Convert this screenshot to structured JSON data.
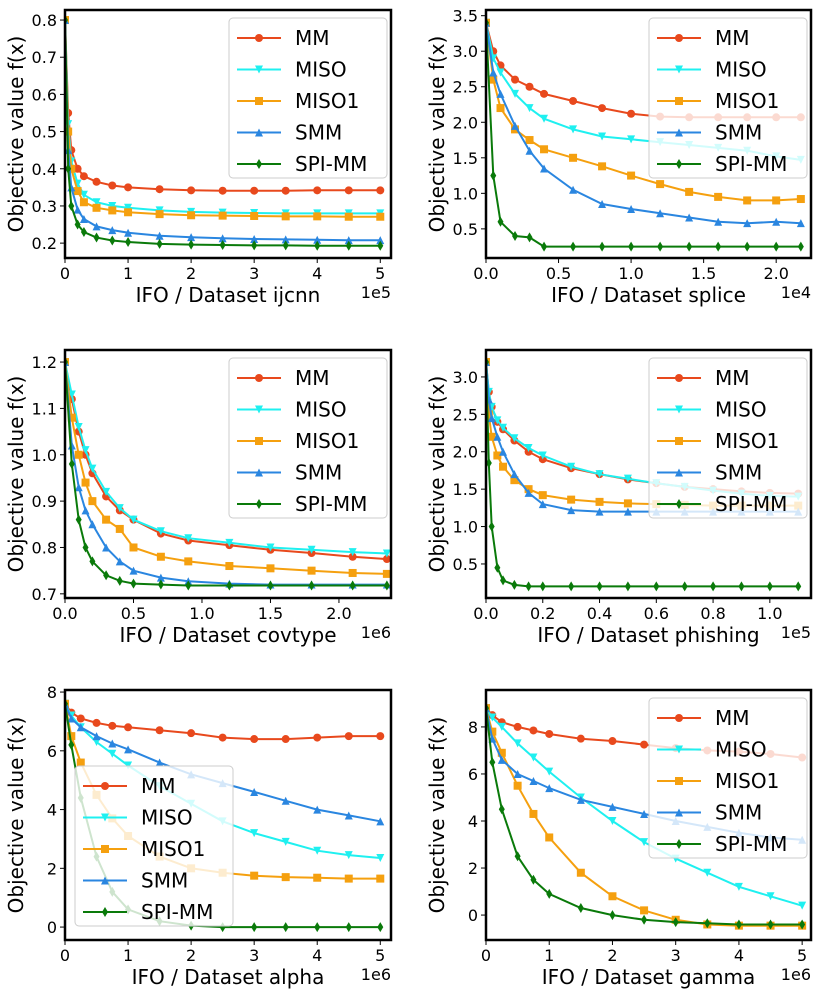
{
  "chart_data": [
    {
      "type": "line",
      "xlabel": "IFO / Dataset ijcnn",
      "ylabel": "Objective value f(x)",
      "x_offset_label": "1e5",
      "xlim": [
        0,
        5.17
      ],
      "ylim": [
        0.16,
        0.827
      ],
      "xticks": [
        0,
        1,
        2,
        3,
        4,
        5
      ],
      "yticks": [
        0.2,
        0.3,
        0.4,
        0.5,
        0.6,
        0.7,
        0.8
      ],
      "legend": "upper right",
      "x": [
        0,
        0.05,
        0.1,
        0.2,
        0.3,
        0.5,
        0.75,
        1,
        1.5,
        2,
        2.5,
        3,
        3.5,
        4,
        4.5,
        5
      ],
      "series": [
        {
          "name": "MM",
          "color": "#e8491d",
          "marker": "circle",
          "values": [
            0.8,
            0.55,
            0.45,
            0.4,
            0.38,
            0.365,
            0.355,
            0.35,
            0.345,
            0.342,
            0.341,
            0.341,
            0.341,
            0.342,
            0.342,
            0.342
          ]
        },
        {
          "name": "MISO",
          "color": "#1ff0f0",
          "marker": "tri-down",
          "values": [
            0.8,
            0.52,
            0.42,
            0.36,
            0.33,
            0.31,
            0.3,
            0.295,
            0.288,
            0.284,
            0.282,
            0.281,
            0.28,
            0.28,
            0.28,
            0.28
          ]
        },
        {
          "name": "MISO1",
          "color": "#f5a00f",
          "marker": "square",
          "values": [
            0.8,
            0.5,
            0.4,
            0.34,
            0.31,
            0.295,
            0.288,
            0.283,
            0.278,
            0.275,
            0.274,
            0.273,
            0.272,
            0.272,
            0.271,
            0.271
          ]
        },
        {
          "name": "SMM",
          "color": "#2a86e0",
          "marker": "tri-up",
          "values": [
            0.8,
            0.45,
            0.35,
            0.29,
            0.265,
            0.245,
            0.235,
            0.228,
            0.22,
            0.216,
            0.213,
            0.211,
            0.21,
            0.209,
            0.208,
            0.208
          ]
        },
        {
          "name": "SPI-MM",
          "color": "#0a7a0a",
          "marker": "diamond",
          "values": [
            0.8,
            0.4,
            0.3,
            0.25,
            0.23,
            0.215,
            0.207,
            0.203,
            0.198,
            0.196,
            0.195,
            0.194,
            0.194,
            0.193,
            0.193,
            0.193
          ]
        }
      ]
    },
    {
      "type": "line",
      "xlabel": "IFO / Dataset splice",
      "ylabel": "Objective value f(x)",
      "x_offset_label": "1e4",
      "xlim": [
        0,
        2.24
      ],
      "ylim": [
        0.09,
        3.58
      ],
      "xticks": [
        {
          "value": 0,
          "label": "0.0"
        },
        0.5,
        {
          "value": 1,
          "label": "1.0"
        },
        1.5,
        {
          "value": 2,
          "label": "2.0"
        }
      ],
      "yticks": [
        0.5,
        {
          "value": 1,
          "label": "1.0"
        },
        1.5,
        {
          "value": 2,
          "label": "2.0"
        },
        2.5,
        {
          "value": 3,
          "label": "3.0"
        },
        3.5
      ],
      "legend": "upper right",
      "x": [
        0,
        0.05,
        0.1,
        0.2,
        0.3,
        0.4,
        0.6,
        0.8,
        1.0,
        1.2,
        1.4,
        1.6,
        1.8,
        2.0,
        2.17
      ],
      "series": [
        {
          "name": "MM",
          "color": "#e8491d",
          "marker": "circle",
          "values": [
            3.4,
            3.0,
            2.8,
            2.6,
            2.5,
            2.4,
            2.3,
            2.2,
            2.12,
            2.08,
            2.07,
            2.07,
            2.07,
            2.07,
            2.07
          ]
        },
        {
          "name": "MISO",
          "color": "#1ff0f0",
          "marker": "tri-down",
          "values": [
            3.4,
            2.9,
            2.7,
            2.4,
            2.2,
            2.05,
            1.9,
            1.8,
            1.76,
            1.72,
            1.68,
            1.64,
            1.6,
            1.52,
            1.47
          ]
        },
        {
          "name": "MISO1",
          "color": "#f5a00f",
          "marker": "square",
          "values": [
            3.4,
            2.6,
            2.2,
            1.9,
            1.75,
            1.62,
            1.5,
            1.38,
            1.25,
            1.13,
            1.02,
            0.95,
            0.9,
            0.9,
            0.92
          ]
        },
        {
          "name": "SMM",
          "color": "#2a86e0",
          "marker": "tri-up",
          "values": [
            3.4,
            2.7,
            2.4,
            1.95,
            1.6,
            1.35,
            1.05,
            0.85,
            0.78,
            0.72,
            0.66,
            0.6,
            0.58,
            0.6,
            0.58
          ]
        },
        {
          "name": "SPI-MM",
          "color": "#0a7a0a",
          "marker": "diamond",
          "values": [
            3.4,
            1.25,
            0.6,
            0.4,
            0.38,
            0.25,
            0.25,
            0.25,
            0.25,
            0.25,
            0.25,
            0.25,
            0.25,
            0.25,
            0.25
          ]
        }
      ]
    },
    {
      "type": "line",
      "xlabel": "IFO / Dataset covtype",
      "ylabel": "Objective value f(x)",
      "x_offset_label": "1e6",
      "xlim": [
        0,
        2.38
      ],
      "ylim": [
        0.691,
        1.226
      ],
      "xticks": [
        {
          "value": 0,
          "label": "0.0"
        },
        0.5,
        {
          "value": 1,
          "label": "1.0"
        },
        1.5,
        {
          "value": 2,
          "label": "2.0"
        }
      ],
      "yticks": [
        0.7,
        0.8,
        0.9,
        {
          "value": 1,
          "label": "1.0"
        },
        1.1,
        1.2
      ],
      "legend": "upper right",
      "x": [
        0,
        0.05,
        0.1,
        0.15,
        0.2,
        0.3,
        0.4,
        0.5,
        0.7,
        0.9,
        1.2,
        1.5,
        1.8,
        2.1,
        2.35
      ],
      "series": [
        {
          "name": "MM",
          "color": "#e8491d",
          "marker": "circle",
          "values": [
            1.2,
            1.12,
            1.05,
            1.0,
            0.96,
            0.91,
            0.88,
            0.86,
            0.83,
            0.815,
            0.805,
            0.795,
            0.788,
            0.78,
            0.775
          ]
        },
        {
          "name": "MISO",
          "color": "#1ff0f0",
          "marker": "tri-down",
          "values": [
            1.2,
            1.13,
            1.06,
            1.01,
            0.97,
            0.92,
            0.885,
            0.86,
            0.835,
            0.82,
            0.81,
            0.8,
            0.795,
            0.79,
            0.787
          ]
        },
        {
          "name": "MISO1",
          "color": "#f5a00f",
          "marker": "square",
          "values": [
            1.2,
            1.08,
            1.0,
            0.94,
            0.9,
            0.86,
            0.84,
            0.8,
            0.78,
            0.77,
            0.76,
            0.755,
            0.75,
            0.745,
            0.743
          ]
        },
        {
          "name": "SMM",
          "color": "#2a86e0",
          "marker": "tri-up",
          "values": [
            1.2,
            1.02,
            0.93,
            0.88,
            0.85,
            0.8,
            0.77,
            0.75,
            0.735,
            0.727,
            0.722,
            0.72,
            0.72,
            0.72,
            0.72
          ]
        },
        {
          "name": "SPI-MM",
          "color": "#0a7a0a",
          "marker": "diamond",
          "values": [
            1.2,
            0.98,
            0.86,
            0.8,
            0.77,
            0.74,
            0.728,
            0.722,
            0.72,
            0.718,
            0.718,
            0.718,
            0.718,
            0.718,
            0.718
          ]
        }
      ]
    },
    {
      "type": "line",
      "xlabel": "IFO / Dataset phishing",
      "ylabel": "Objective value f(x)",
      "x_offset_label": "1e5",
      "xlim": [
        0,
        1.145
      ],
      "ylim": [
        0.045,
        3.36
      ],
      "xticks": [
        {
          "value": 0,
          "label": "0.0"
        },
        0.2,
        0.4,
        0.6,
        0.8,
        {
          "value": 1,
          "label": "1.0"
        }
      ],
      "yticks": [
        0.5,
        {
          "value": 1,
          "label": "1.0"
        },
        1.5,
        {
          "value": 2,
          "label": "2.0"
        },
        2.5,
        {
          "value": 3,
          "label": "3.0"
        }
      ],
      "legend": "upper right",
      "x": [
        0,
        0.01,
        0.02,
        0.04,
        0.06,
        0.1,
        0.15,
        0.2,
        0.3,
        0.4,
        0.5,
        0.6,
        0.7,
        0.8,
        0.9,
        1.0,
        1.1
      ],
      "series": [
        {
          "name": "MM",
          "color": "#e8491d",
          "marker": "circle",
          "values": [
            3.2,
            2.8,
            2.6,
            2.4,
            2.3,
            2.15,
            2.0,
            1.9,
            1.78,
            1.7,
            1.63,
            1.58,
            1.53,
            1.5,
            1.47,
            1.45,
            1.44
          ]
        },
        {
          "name": "MISO",
          "color": "#1ff0f0",
          "marker": "tri-down",
          "values": [
            3.2,
            2.8,
            2.6,
            2.42,
            2.32,
            2.18,
            2.05,
            1.95,
            1.8,
            1.7,
            1.64,
            1.58,
            1.53,
            1.48,
            1.44,
            1.41,
            1.4
          ]
        },
        {
          "name": "MISO1",
          "color": "#f5a00f",
          "marker": "square",
          "values": [
            3.2,
            2.5,
            2.2,
            1.95,
            1.8,
            1.62,
            1.5,
            1.42,
            1.36,
            1.33,
            1.31,
            1.3,
            1.29,
            1.28,
            1.28,
            1.28,
            1.28
          ]
        },
        {
          "name": "SMM",
          "color": "#2a86e0",
          "marker": "tri-up",
          "values": [
            3.2,
            2.7,
            2.45,
            2.2,
            2.0,
            1.7,
            1.45,
            1.3,
            1.22,
            1.2,
            1.2,
            1.2,
            1.2,
            1.2,
            1.2,
            1.2,
            1.2
          ]
        },
        {
          "name": "SPI-MM",
          "color": "#0a7a0a",
          "marker": "diamond",
          "values": [
            3.2,
            1.85,
            1.0,
            0.45,
            0.28,
            0.22,
            0.2,
            0.2,
            0.2,
            0.2,
            0.2,
            0.2,
            0.2,
            0.2,
            0.2,
            0.2,
            0.2
          ]
        }
      ]
    },
    {
      "type": "line",
      "xlabel": "IFO / Dataset alpha",
      "ylabel": "Objective value f(x)",
      "x_offset_label": "1e6",
      "xlim": [
        0,
        5.17
      ],
      "ylim": [
        -0.44,
        8.07
      ],
      "xticks": [
        0,
        1,
        2,
        3,
        4,
        5
      ],
      "yticks": [
        0,
        2,
        4,
        6,
        8
      ],
      "legend": "lower left",
      "x": [
        0,
        0.1,
        0.25,
        0.5,
        0.75,
        1,
        1.5,
        2,
        2.5,
        3,
        3.5,
        4,
        4.5,
        5
      ],
      "series": [
        {
          "name": "MM",
          "color": "#e8491d",
          "marker": "circle",
          "values": [
            7.6,
            7.3,
            7.1,
            6.95,
            6.85,
            6.8,
            6.7,
            6.6,
            6.45,
            6.4,
            6.4,
            6.45,
            6.5,
            6.5
          ]
        },
        {
          "name": "MISO",
          "color": "#1ff0f0",
          "marker": "tri-down",
          "values": [
            7.6,
            7.2,
            6.8,
            6.3,
            5.9,
            5.5,
            4.8,
            4.2,
            3.6,
            3.2,
            2.9,
            2.6,
            2.45,
            2.35
          ]
        },
        {
          "name": "MISO1",
          "color": "#f5a00f",
          "marker": "square",
          "values": [
            7.6,
            6.5,
            5.6,
            4.5,
            3.7,
            3.1,
            2.4,
            2.0,
            1.85,
            1.75,
            1.7,
            1.68,
            1.65,
            1.65
          ]
        },
        {
          "name": "SMM",
          "color": "#2a86e0",
          "marker": "tri-up",
          "values": [
            7.6,
            7.1,
            6.8,
            6.5,
            6.25,
            6.05,
            5.6,
            5.2,
            4.9,
            4.6,
            4.3,
            4.0,
            3.8,
            3.6
          ]
        },
        {
          "name": "SPI-MM",
          "color": "#0a7a0a",
          "marker": "diamond",
          "values": [
            7.6,
            6.2,
            4.4,
            2.4,
            1.2,
            0.6,
            0.2,
            0.05,
            0,
            0,
            0,
            0,
            0,
            0
          ]
        }
      ]
    },
    {
      "type": "line",
      "xlabel": "IFO / Dataset gamma",
      "ylabel": "Objective value f(x)",
      "x_offset_label": "1e6",
      "xlim": [
        0,
        5.14
      ],
      "ylim": [
        -1.06,
        9.57
      ],
      "xticks": [
        0,
        1,
        2,
        3,
        4,
        5
      ],
      "yticks": [
        0,
        2,
        4,
        6,
        8
      ],
      "legend": "upper right",
      "x": [
        0,
        0.1,
        0.25,
        0.5,
        0.75,
        1,
        1.5,
        2,
        2.5,
        3,
        3.5,
        4,
        4.5,
        5
      ],
      "series": [
        {
          "name": "MM",
          "color": "#e8491d",
          "marker": "circle",
          "values": [
            8.8,
            8.5,
            8.2,
            8.0,
            7.85,
            7.7,
            7.5,
            7.4,
            7.25,
            7.1,
            7.0,
            6.95,
            6.85,
            6.7
          ]
        },
        {
          "name": "MISO",
          "color": "#1ff0f0",
          "marker": "tri-down",
          "values": [
            8.8,
            8.4,
            8.0,
            7.3,
            6.7,
            6.1,
            5.0,
            4.0,
            3.1,
            2.4,
            1.8,
            1.2,
            0.8,
            0.4
          ]
        },
        {
          "name": "MISO1",
          "color": "#f5a00f",
          "marker": "square",
          "values": [
            8.8,
            7.8,
            6.9,
            5.5,
            4.3,
            3.3,
            1.8,
            0.8,
            0.2,
            -0.2,
            -0.4,
            -0.45,
            -0.45,
            -0.45
          ]
        },
        {
          "name": "SMM",
          "color": "#2a86e0",
          "marker": "tri-up",
          "values": [
            8.8,
            7.5,
            6.6,
            6.0,
            5.7,
            5.4,
            4.9,
            4.6,
            4.3,
            4.0,
            3.75,
            3.5,
            3.3,
            3.2
          ]
        },
        {
          "name": "SPI-MM",
          "color": "#0a7a0a",
          "marker": "diamond",
          "values": [
            8.8,
            6.5,
            4.5,
            2.5,
            1.5,
            0.9,
            0.3,
            0.0,
            -0.2,
            -0.3,
            -0.35,
            -0.4,
            -0.4,
            -0.4
          ]
        }
      ]
    }
  ]
}
